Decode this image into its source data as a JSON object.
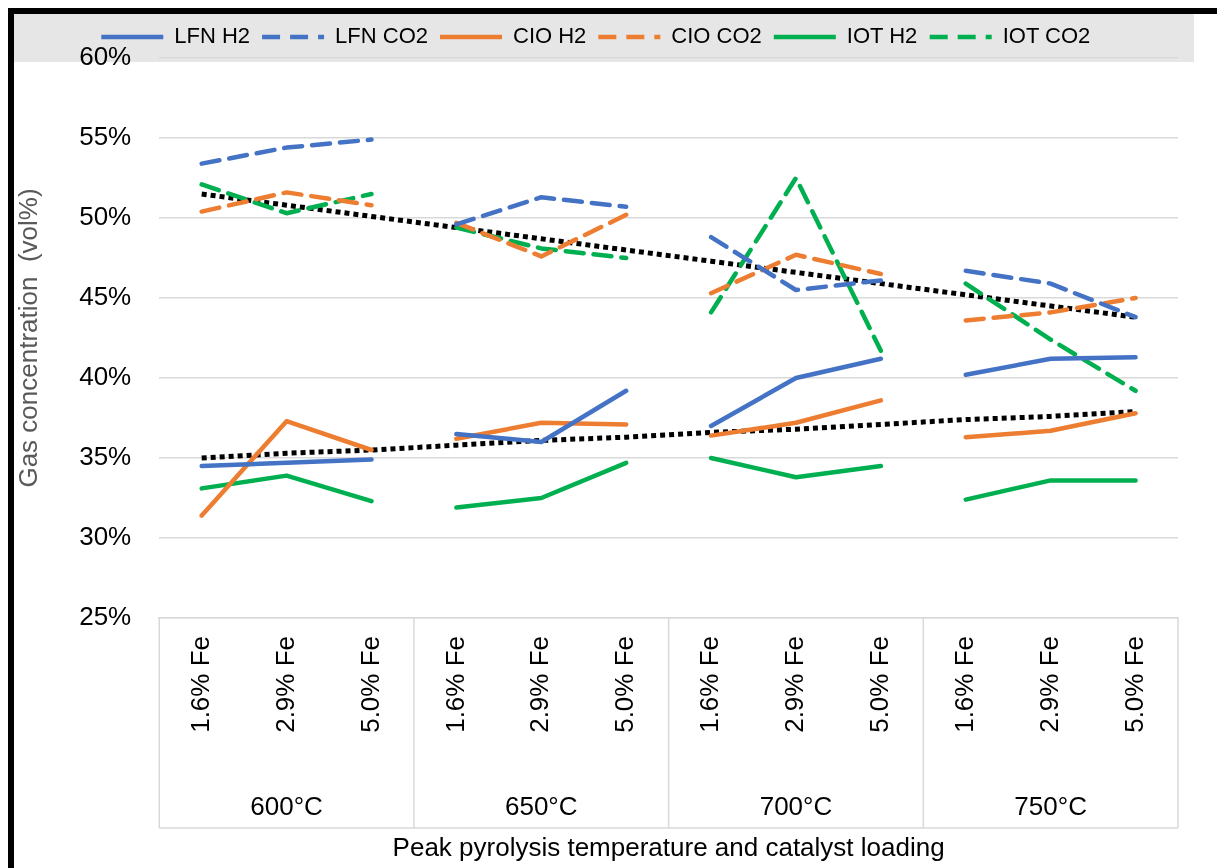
{
  "chart_data": {
    "type": "line",
    "ylabel": "Gas concentration  (vol%)",
    "xlabel": "Peak pyrolysis temperature and catalyst loading",
    "categories": [
      "1.6% Fe",
      "2.9% Fe",
      "5.0% Fe",
      "1.6% Fe",
      "2.9% Fe",
      "5.0% Fe",
      "1.6% Fe",
      "2.9% Fe",
      "5.0% Fe",
      "1.6% Fe",
      "2.9% Fe",
      "5.0% Fe"
    ],
    "annotations": [
      "600°C",
      "650°C",
      "700°C",
      "750°C"
    ],
    "ylim": [
      25,
      60
    ],
    "yticks": [
      {
        "value": 25,
        "label": "25%"
      },
      {
        "value": 30,
        "label": "30%"
      },
      {
        "value": 35,
        "label": "35%"
      },
      {
        "value": 40,
        "label": "40%"
      },
      {
        "value": 45,
        "label": "45%"
      },
      {
        "value": 50,
        "label": "50%"
      },
      {
        "value": 55,
        "label": "55%"
      },
      {
        "value": 60,
        "label": "60%"
      }
    ],
    "grid": "y",
    "legend": "top",
    "marker": "none",
    "series": [
      {
        "name": "LFN H2",
        "color": "#4472c4",
        "line_style": "solid",
        "values": [
          34.5,
          34.7,
          34.9,
          36.5,
          36.0,
          39.2,
          37.0,
          40.0,
          41.2,
          40.2,
          41.2,
          41.3
        ]
      },
      {
        "name": "LFN CO2",
        "color": "#4472c4",
        "line_style": "dashed",
        "values": [
          53.4,
          54.4,
          54.9,
          49.6,
          51.3,
          50.7,
          48.8,
          45.5,
          46.1,
          46.7,
          45.9,
          43.8
        ]
      },
      {
        "name": "CIO H2",
        "color": "#ed7d31",
        "line_style": "solid",
        "values": [
          31.4,
          37.3,
          35.5,
          36.2,
          37.2,
          37.1,
          36.4,
          37.2,
          38.6,
          36.3,
          36.7,
          37.8
        ]
      },
      {
        "name": "CIO CO2",
        "color": "#ed7d31",
        "line_style": "dashed",
        "values": [
          50.4,
          51.6,
          50.8,
          49.7,
          47.6,
          50.2,
          45.3,
          47.7,
          46.5,
          43.6,
          44.1,
          45.0
        ]
      },
      {
        "name": "IOT H2",
        "color": "#00b050",
        "line_style": "solid",
        "values": [
          33.1,
          33.9,
          32.3,
          31.9,
          32.5,
          34.7,
          35.0,
          33.8,
          34.5,
          32.4,
          33.6,
          33.6
        ]
      },
      {
        "name": "IOT CO2",
        "color": "#00b050",
        "line_style": "dashed",
        "values": [
          52.1,
          50.3,
          51.5,
          49.4,
          48.1,
          47.5,
          44.1,
          52.5,
          41.7,
          45.9,
          42.4,
          39.2
        ]
      },
      {
        "color": "#000000",
        "line_style": "dotted",
        "values": [
          51.5,
          50.8,
          50.1,
          49.4,
          48.7,
          48.0,
          47.3,
          46.6,
          45.9,
          45.2,
          44.5,
          43.8
        ]
      },
      {
        "color": "#000000",
        "line_style": "dotted",
        "values": [
          35.0,
          35.3,
          35.5,
          35.8,
          36.1,
          36.3,
          36.6,
          36.8,
          37.1,
          37.4,
          37.6,
          37.9
        ]
      }
    ]
  }
}
